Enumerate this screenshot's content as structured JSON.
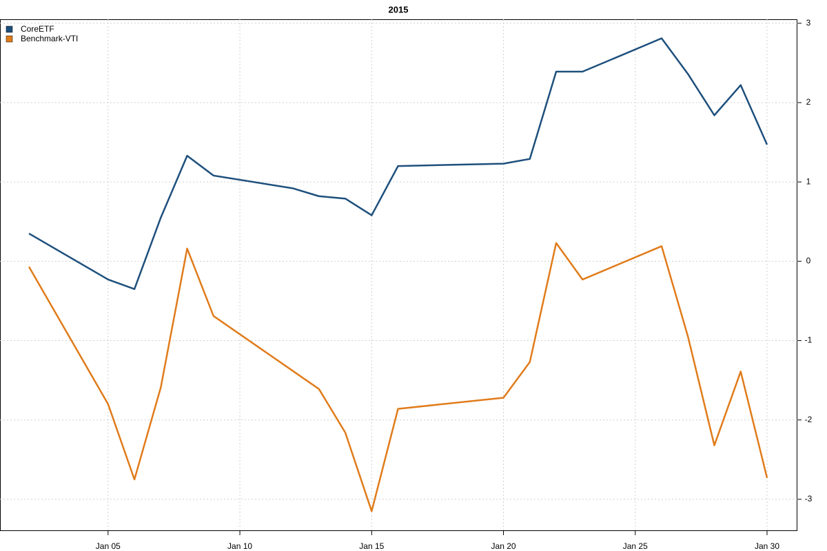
{
  "chart_data": {
    "type": "line",
    "title": "2015",
    "x": [
      2,
      5,
      6,
      7,
      8,
      9,
      12,
      13,
      14,
      15,
      16,
      20,
      21,
      22,
      23,
      26,
      27,
      28,
      29,
      30
    ],
    "series": [
      {
        "name": "CoreETF",
        "color": "#1d4f7c",
        "values": [
          0.35,
          -0.23,
          -0.35,
          0.55,
          1.33,
          1.08,
          0.92,
          0.82,
          0.79,
          0.58,
          1.2,
          1.23,
          1.29,
          2.39,
          2.39,
          2.81,
          2.36,
          1.84,
          2.22,
          1.47
        ]
      },
      {
        "name": "Benchmark-VTI",
        "color": "#e07b1a",
        "values": [
          -0.07,
          -1.8,
          -2.75,
          -1.59,
          0.16,
          -0.69,
          -1.38,
          -1.61,
          -2.16,
          -3.15,
          -1.86,
          -1.72,
          -1.27,
          0.23,
          -0.23,
          0.19,
          -0.95,
          -2.32,
          -1.39,
          -2.73
        ]
      }
    ],
    "xlim": [
      0.9,
      31.15
    ],
    "xticks": [
      {
        "value": 5,
        "label": "Jan 05"
      },
      {
        "value": 10,
        "label": "Jan 10"
      },
      {
        "value": 15,
        "label": "Jan 15"
      },
      {
        "value": 20,
        "label": "Jan 20"
      },
      {
        "value": 25,
        "label": "Jan 25"
      },
      {
        "value": 30,
        "label": "Jan 30"
      }
    ],
    "ylim": [
      -3.4,
      3.05
    ],
    "yticks": [
      -3,
      -2,
      -1,
      0,
      1,
      2,
      3
    ],
    "grid": true,
    "legend": "top-left"
  }
}
